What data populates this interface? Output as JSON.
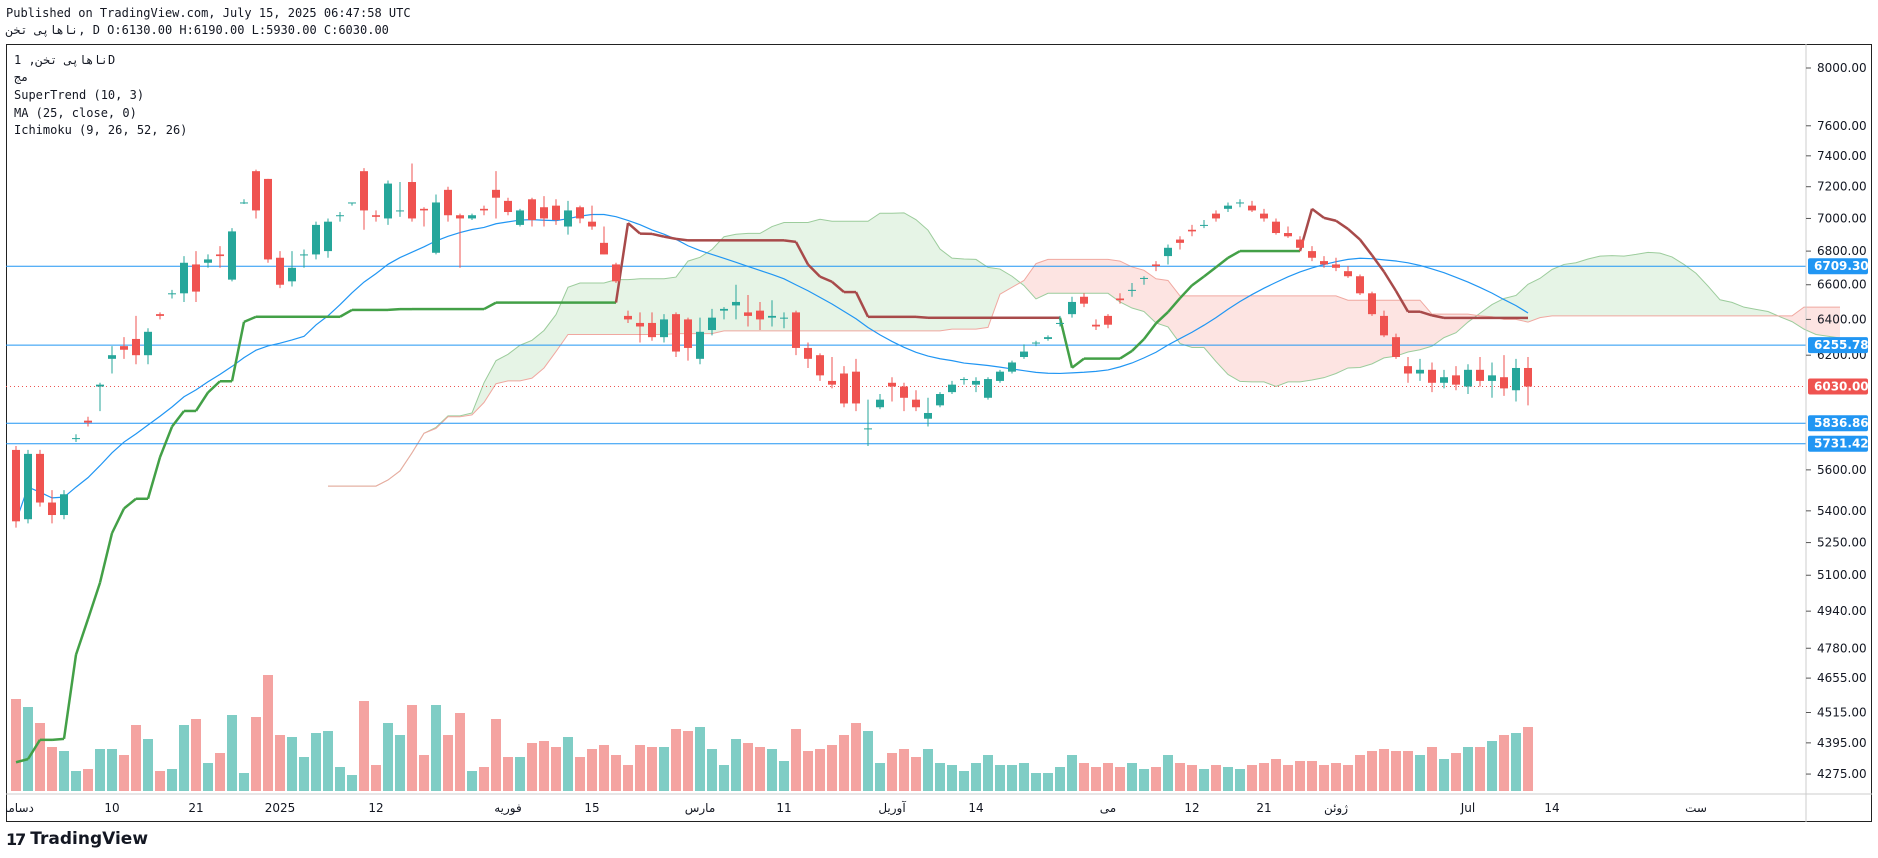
{
  "header": {
    "published": "Published on TradingView.com, July 15, 2025 06:47:58 UTC",
    "ohlc": "ناهاپی تخن, D O:6130.00 H:6190.00 L:5930.00 C:6030.00"
  },
  "legend": {
    "title": "ناهاپی تخن, 1D",
    "subtitle": "مج",
    "supertrend": "SuperTrend (10, 3)",
    "ma": "MA (25, close, 0)",
    "ichimoku": "Ichimoku (9, 26, 52, 26)"
  },
  "brand": {
    "logo": "17",
    "name": "TradingView"
  },
  "colors": {
    "up": "#26a69a",
    "down": "#ef5350",
    "up_volume": "#7fcdc5",
    "down_volume": "#f4a3a1",
    "supertrend_up": "#43a047",
    "supertrend_down": "#a84a4a",
    "ma": "#2196f3",
    "cloud_green": "#e6f4e6",
    "cloud_red": "#fde4e2",
    "hline": "#2196f3",
    "last_price": "#ef5350"
  },
  "chart_data": {
    "type": "candlestick",
    "y_scale": "log",
    "ylim": [
      4200,
      8100
    ],
    "y_ticks": [
      "8000.00",
      "7600.00",
      "7400.00",
      "7200.00",
      "7000.00",
      "6800.00",
      "6600.00",
      "6400.00",
      "6200.00",
      "5600.00",
      "5400.00",
      "5250.00",
      "5100.00",
      "4940.00",
      "4780.00",
      "4655.00",
      "4515.00",
      "4395.00",
      "4275.00"
    ],
    "x_ticks": [
      {
        "label": "دسامبر",
        "index": 0
      },
      {
        "label": "10",
        "index": 8
      },
      {
        "label": "21",
        "index": 15
      },
      {
        "label": "2025",
        "index": 22
      },
      {
        "label": "12",
        "index": 30
      },
      {
        "label": "فوریه",
        "index": 41
      },
      {
        "label": "15",
        "index": 48
      },
      {
        "label": "مارس",
        "index": 57
      },
      {
        "label": "11",
        "index": 64
      },
      {
        "label": "آوریل",
        "index": 73
      },
      {
        "label": "14",
        "index": 80
      },
      {
        "label": "می",
        "index": 91
      },
      {
        "label": "12",
        "index": 98
      },
      {
        "label": "21",
        "index": 104
      },
      {
        "label": "ژوئن",
        "index": 110
      },
      {
        "label": "Jul",
        "index": 121
      },
      {
        "label": "14",
        "index": 128
      },
      {
        "label": "ست",
        "index": 140
      }
    ],
    "last_price": 6030,
    "horizontal_lines": [
      6709.3,
      6255.78,
      5836.86,
      5731.42
    ],
    "candles": [
      [
        5700,
        5720,
        5320,
        5350
      ],
      [
        5360,
        5700,
        5340,
        5680
      ],
      [
        5680,
        5700,
        5420,
        5440
      ],
      [
        5440,
        5500,
        5340,
        5380
      ],
      [
        5380,
        5500,
        5360,
        5480
      ],
      [
        5760,
        5780,
        5740,
        5760
      ],
      [
        5850,
        5870,
        5820,
        5840
      ],
      [
        6030,
        6050,
        5900,
        6040
      ],
      [
        6180,
        6250,
        6100,
        6200
      ],
      [
        6250,
        6300,
        6180,
        6230
      ],
      [
        6290,
        6420,
        6150,
        6200
      ],
      [
        6200,
        6350,
        6150,
        6330
      ],
      [
        6430,
        6440,
        6400,
        6420
      ],
      [
        6550,
        6570,
        6520,
        6550
      ],
      [
        6550,
        6770,
        6500,
        6730
      ],
      [
        6720,
        6800,
        6500,
        6560
      ],
      [
        6730,
        6780,
        6700,
        6750
      ],
      [
        6780,
        6830,
        6700,
        6770
      ],
      [
        6630,
        6940,
        6620,
        6920
      ],
      [
        7100,
        7120,
        7090,
        7100
      ],
      [
        7300,
        7310,
        7000,
        7050
      ],
      [
        7250,
        7250,
        6730,
        6750
      ],
      [
        6760,
        6800,
        6580,
        6600
      ],
      [
        6620,
        6800,
        6590,
        6700
      ],
      [
        6780,
        6810,
        6700,
        6780
      ],
      [
        6780,
        6980,
        6750,
        6960
      ],
      [
        6800,
        7000,
        6760,
        6980
      ],
      [
        7020,
        7040,
        6980,
        7020
      ],
      [
        7100,
        7100,
        7080,
        7100
      ],
      [
        7300,
        7320,
        6930,
        7050
      ],
      [
        7020,
        7050,
        6980,
        7010
      ],
      [
        7000,
        7240,
        6960,
        7220
      ],
      [
        7050,
        7230,
        7010,
        7050
      ],
      [
        7230,
        7350,
        6980,
        7000
      ],
      [
        7060,
        7070,
        6950,
        7050
      ],
      [
        6790,
        7150,
        6780,
        7100
      ],
      [
        7180,
        7200,
        6980,
        7020
      ],
      [
        7020,
        7030,
        6700,
        7000
      ],
      [
        7000,
        7030,
        6990,
        7020
      ],
      [
        7060,
        7080,
        7020,
        7050
      ],
      [
        7180,
        7300,
        7000,
        7130
      ],
      [
        7110,
        7130,
        7020,
        7040
      ],
      [
        6960,
        7060,
        6950,
        7050
      ],
      [
        7120,
        7130,
        6950,
        6990
      ],
      [
        7070,
        7140,
        6950,
        7000
      ],
      [
        7080,
        7120,
        6960,
        6990
      ],
      [
        6950,
        7110,
        6900,
        7050
      ],
      [
        7070,
        7080,
        6970,
        7000
      ],
      [
        6980,
        7080,
        6930,
        6950
      ],
      [
        6850,
        6950,
        6780,
        6780
      ],
      [
        6720,
        6730,
        6610,
        6620
      ],
      [
        6420,
        6450,
        6380,
        6400
      ],
      [
        6380,
        6440,
        6270,
        6360
      ],
      [
        6380,
        6440,
        6280,
        6300
      ],
      [
        6300,
        6430,
        6270,
        6400
      ],
      [
        6430,
        6440,
        6190,
        6220
      ],
      [
        6400,
        6410,
        6170,
        6240
      ],
      [
        6180,
        6410,
        6150,
        6330
      ],
      [
        6340,
        6460,
        6310,
        6410
      ],
      [
        6450,
        6470,
        6400,
        6460
      ],
      [
        6480,
        6600,
        6400,
        6500
      ],
      [
        6440,
        6540,
        6360,
        6420
      ],
      [
        6450,
        6500,
        6340,
        6400
      ],
      [
        6410,
        6510,
        6360,
        6420
      ],
      [
        6410,
        6440,
        6350,
        6410
      ],
      [
        6440,
        6450,
        6200,
        6240
      ],
      [
        6240,
        6270,
        6130,
        6180
      ],
      [
        6200,
        6210,
        6060,
        6090
      ],
      [
        6060,
        6190,
        6020,
        6040
      ],
      [
        6100,
        6140,
        5920,
        5940
      ],
      [
        6110,
        6180,
        5900,
        5940
      ],
      [
        5810,
        5960,
        5720,
        5810
      ],
      [
        5920,
        5990,
        5910,
        5960
      ],
      [
        6050,
        6080,
        5950,
        6030
      ],
      [
        6030,
        6050,
        5900,
        5970
      ],
      [
        5960,
        6010,
        5900,
        5920
      ],
      [
        5860,
        5970,
        5820,
        5890
      ],
      [
        5930,
        6000,
        5920,
        5990
      ],
      [
        6000,
        6060,
        5990,
        6040
      ],
      [
        6070,
        6080,
        6040,
        6070
      ],
      [
        6040,
        6080,
        6000,
        6060
      ],
      [
        5970,
        6080,
        5960,
        6070
      ],
      [
        6060,
        6120,
        6050,
        6110
      ],
      [
        6110,
        6170,
        6100,
        6160
      ],
      [
        6190,
        6260,
        6180,
        6220
      ],
      [
        6270,
        6280,
        6250,
        6270
      ],
      [
        6290,
        6310,
        6280,
        6300
      ],
      [
        6380,
        6420,
        6360,
        6380
      ],
      [
        6430,
        6530,
        6410,
        6500
      ],
      [
        6530,
        6550,
        6470,
        6490
      ],
      [
        6370,
        6400,
        6340,
        6360
      ],
      [
        6420,
        6430,
        6350,
        6370
      ],
      [
        6520,
        6550,
        6490,
        6510
      ],
      [
        6570,
        6610,
        6530,
        6570
      ],
      [
        6640,
        6650,
        6600,
        6640
      ],
      [
        6720,
        6740,
        6680,
        6710
      ],
      [
        6770,
        6840,
        6720,
        6820
      ],
      [
        6870,
        6890,
        6810,
        6850
      ],
      [
        6930,
        6960,
        6890,
        6920
      ],
      [
        6960,
        6990,
        6940,
        6960
      ],
      [
        7030,
        7050,
        6980,
        7000
      ],
      [
        7060,
        7100,
        7040,
        7080
      ],
      [
        7100,
        7120,
        7070,
        7100
      ],
      [
        7080,
        7110,
        7040,
        7050
      ],
      [
        7030,
        7060,
        6980,
        7000
      ],
      [
        6980,
        7000,
        6900,
        6910
      ],
      [
        6910,
        6950,
        6880,
        6890
      ],
      [
        6870,
        6890,
        6800,
        6820
      ],
      [
        6800,
        6830,
        6740,
        6760
      ],
      [
        6740,
        6770,
        6700,
        6720
      ],
      [
        6720,
        6760,
        6680,
        6700
      ],
      [
        6680,
        6710,
        6640,
        6650
      ],
      [
        6650,
        6660,
        6540,
        6550
      ],
      [
        6550,
        6560,
        6420,
        6430
      ],
      [
        6420,
        6450,
        6300,
        6310
      ],
      [
        6300,
        6320,
        6180,
        6190
      ],
      [
        6140,
        6190,
        6050,
        6100
      ],
      [
        6100,
        6180,
        6060,
        6120
      ],
      [
        6120,
        6160,
        6000,
        6050
      ],
      [
        6050,
        6120,
        6020,
        6080
      ],
      [
        6090,
        6140,
        6010,
        6040
      ],
      [
        6030,
        6150,
        5990,
        6120
      ],
      [
        6120,
        6190,
        6030,
        6060
      ],
      [
        6060,
        6160,
        5970,
        6090
      ],
      [
        6080,
        6200,
        5980,
        6020
      ],
      [
        6010,
        6180,
        5950,
        6130
      ],
      [
        6130,
        6190,
        5930,
        6030
      ]
    ]
  }
}
